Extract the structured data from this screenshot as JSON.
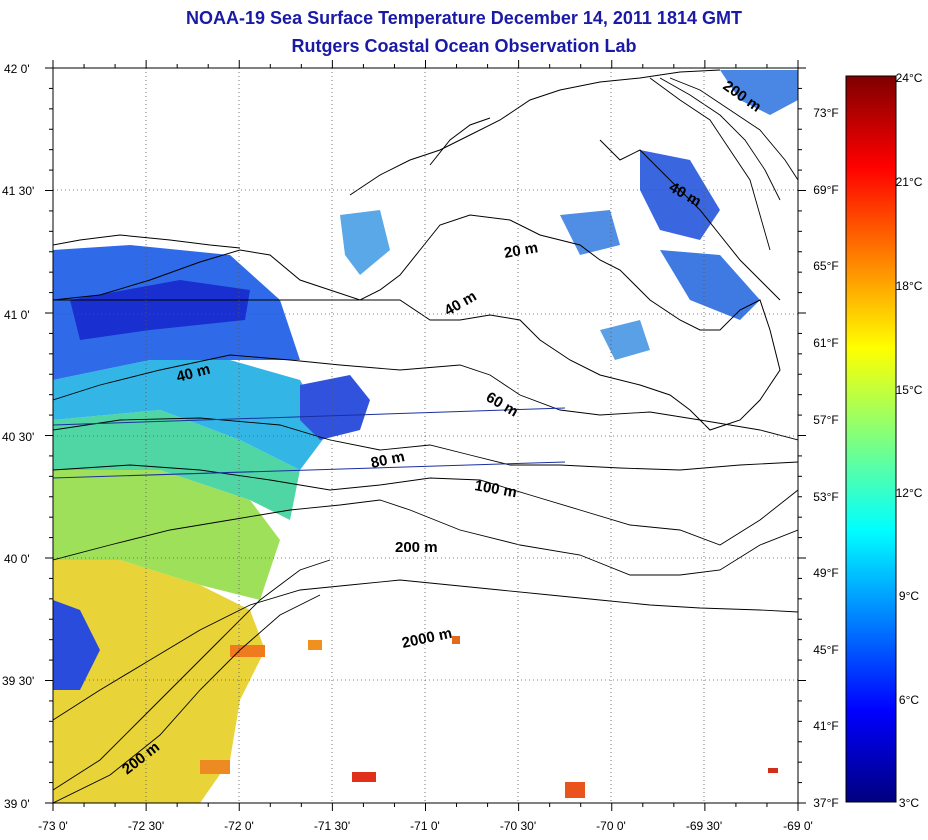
{
  "title": {
    "line1": "NOAA-19 Sea Surface Temperature December 14, 2011 1814 GMT",
    "line2": "Rutgers Coastal Ocean Observation Lab"
  },
  "map": {
    "lat_labels": [
      "42 0'",
      "41 30'",
      "41 0'",
      "40 30'",
      "40 0'",
      "39 30'",
      "39 0'"
    ],
    "lon_labels": [
      "-73 0'",
      "-72 30'",
      "-72 0'",
      "-71 30'",
      "-71 0'",
      "-70 30'",
      "-70 0'",
      "-69 30'",
      "-69 0'"
    ],
    "lat_range": [
      39.0,
      42.0
    ],
    "lon_range": [
      -73.0,
      -69.0
    ],
    "grid": true,
    "contour_labels": [
      "20 m",
      "40 m",
      "40 m",
      "40 m",
      "60 m",
      "80 m",
      "100 m",
      "200 m",
      "200 m",
      "200 m",
      "2000 m"
    ]
  },
  "colorbar": {
    "fahrenheit_labels": [
      "73°F",
      "69°F",
      "65°F",
      "61°F",
      "57°F",
      "53°F",
      "49°F",
      "45°F",
      "41°F",
      "37°F"
    ],
    "celsius_labels": [
      "24°C",
      "21°C",
      "18°C",
      "15°C",
      "12°C",
      "9°C",
      "6°C",
      "3°C"
    ],
    "range_c": [
      3,
      24
    ],
    "colors": [
      "#00007f",
      "#0000ff",
      "#007fff",
      "#00ffff",
      "#7fff7f",
      "#ffff00",
      "#ff7f00",
      "#ff0000",
      "#7f0000"
    ]
  }
}
